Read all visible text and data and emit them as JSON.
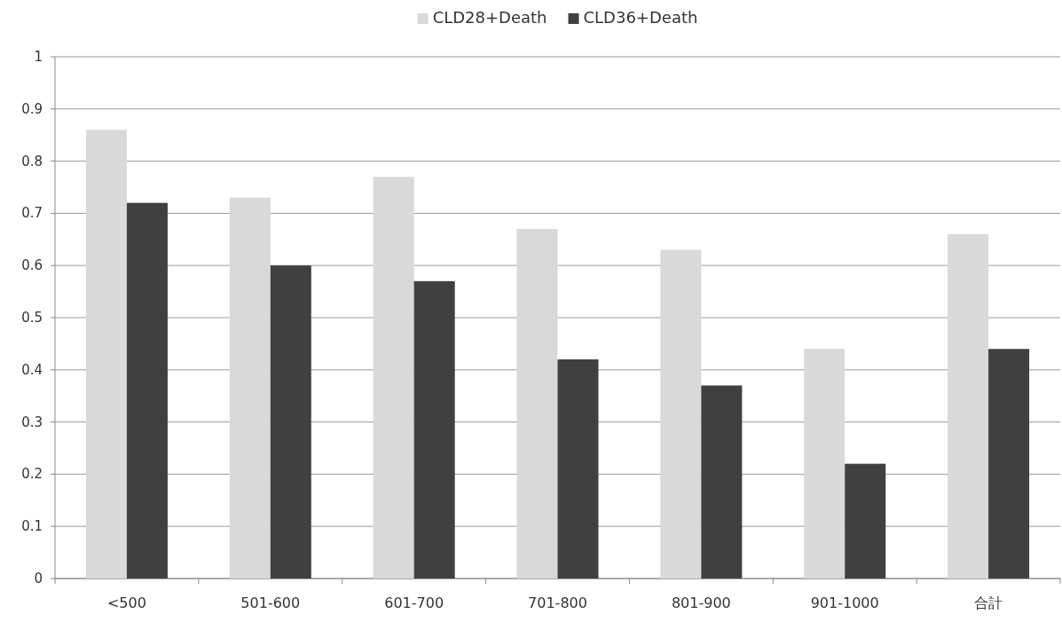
{
  "chart_data": {
    "type": "bar",
    "categories": [
      "<500",
      "501-600",
      "601-700",
      "701-800",
      "801-900",
      "901-1000",
      "合計"
    ],
    "series": [
      {
        "name": "CLD28+Death",
        "color": "#d9d9d9",
        "values": [
          0.86,
          0.73,
          0.77,
          0.67,
          0.63,
          0.44,
          0.66
        ]
      },
      {
        "name": "CLD36+Death",
        "color": "#404040",
        "values": [
          0.72,
          0.6,
          0.57,
          0.42,
          0.37,
          0.22,
          0.44
        ]
      }
    ],
    "ylim": [
      0,
      1
    ],
    "yticks": [
      0,
      0.1,
      0.2,
      0.3,
      0.4,
      0.5,
      0.6,
      0.7,
      0.8,
      0.9,
      1
    ],
    "grid": "y",
    "legend": "top"
  }
}
